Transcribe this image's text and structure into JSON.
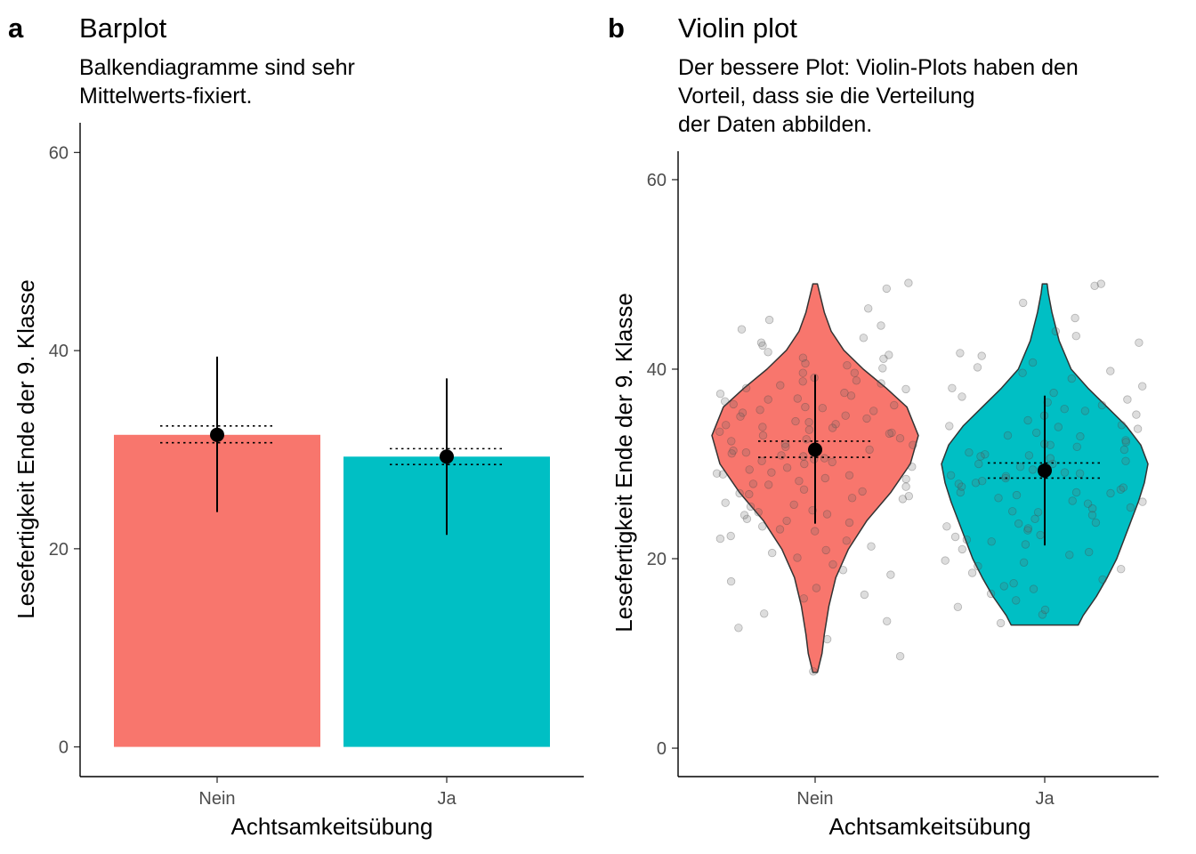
{
  "chart_data": [
    {
      "type": "bar",
      "tag": "a",
      "title": "Barplot",
      "subtitle": [
        "Balkendiagramme sind sehr",
        "Mittelwerts-fixiert."
      ],
      "xlabel": "Achtsamkeitsübung",
      "ylabel": "Lesefertigkeit Ende der 9. Klasse",
      "categories": [
        "Nein",
        "Ja"
      ],
      "colors": [
        "#F8766D",
        "#00BFC4"
      ],
      "values": [
        31.5,
        29.3
      ],
      "sd_low": [
        23.7,
        21.4
      ],
      "sd_high": [
        39.4,
        37.2
      ],
      "ci_low": [
        30.7,
        28.5
      ],
      "ci_high": [
        32.4,
        30.1
      ],
      "yticks": [
        0,
        20,
        40,
        60
      ],
      "ylim": [
        -3,
        63
      ]
    },
    {
      "type": "violin",
      "tag": "b",
      "title": "Violin plot",
      "subtitle": [
        "Der bessere Plot: Violin-Plots haben den",
        "Vorteil, dass sie die Verteilung",
        "der Daten abbilden."
      ],
      "xlabel": "Achtsamkeitsübung",
      "ylabel": "Lesefertigkeit Ende der 9. Klasse",
      "categories": [
        "Nein",
        "Ja"
      ],
      "colors": [
        "#F8766D",
        "#00BFC4"
      ],
      "means": [
        31.5,
        29.3
      ],
      "sd_low": [
        23.7,
        21.4
      ],
      "sd_high": [
        39.4,
        37.2
      ],
      "ci_low": [
        30.7,
        28.5
      ],
      "ci_high": [
        32.4,
        30.1
      ],
      "yticks": [
        0,
        20,
        40,
        60
      ],
      "ylim": [
        -3,
        63
      ],
      "density_profiles": [
        [
          [
            8,
            0.02
          ],
          [
            10,
            0.06
          ],
          [
            12,
            0.08
          ],
          [
            15,
            0.12
          ],
          [
            18,
            0.18
          ],
          [
            21,
            0.29
          ],
          [
            24,
            0.45
          ],
          [
            27,
            0.66
          ],
          [
            30,
            0.83
          ],
          [
            33,
            0.9
          ],
          [
            36,
            0.8
          ],
          [
            38,
            0.62
          ],
          [
            40,
            0.42
          ],
          [
            42,
            0.25
          ],
          [
            44,
            0.14
          ],
          [
            46,
            0.08
          ],
          [
            48,
            0.04
          ],
          [
            49,
            0.02
          ]
        ],
        [
          [
            13,
            0.28
          ],
          [
            14,
            0.32
          ],
          [
            16,
            0.43
          ],
          [
            18,
            0.52
          ],
          [
            20,
            0.6
          ],
          [
            22,
            0.66
          ],
          [
            24,
            0.72
          ],
          [
            26,
            0.78
          ],
          [
            28,
            0.83
          ],
          [
            30,
            0.86
          ],
          [
            32,
            0.8
          ],
          [
            34,
            0.68
          ],
          [
            36,
            0.52
          ],
          [
            38,
            0.36
          ],
          [
            40,
            0.22
          ],
          [
            43,
            0.12
          ],
          [
            46,
            0.06
          ],
          [
            48,
            0.03
          ],
          [
            49,
            0.02
          ]
        ]
      ],
      "points": [
        [
          8.1,
          11.5,
          12.7,
          14.2,
          15.8,
          16.9,
          17.6,
          18.3,
          19.4,
          20.1,
          20.6,
          21.3,
          21.9,
          22.4,
          22.9,
          23.4,
          23.8,
          24.2,
          24.7,
          25.1,
          25.5,
          25.9,
          26.3,
          26.6,
          26.9,
          27.3,
          27.6,
          27.9,
          28.2,
          28.5,
          28.8,
          29.1,
          29.4,
          29.7,
          30.0,
          30.3,
          30.6,
          30.9,
          31.2,
          31.5,
          31.8,
          32.1,
          32.4,
          32.7,
          33.0,
          33.3,
          33.6,
          33.9,
          34.2,
          34.5,
          34.8,
          35.1,
          35.4,
          35.7,
          36.0,
          36.3,
          36.6,
          36.9,
          37.2,
          37.5,
          37.9,
          38.3,
          38.7,
          39.1,
          39.6,
          40.1,
          40.6,
          41.2,
          41.8,
          42.5,
          43.3,
          44.2,
          45.2,
          46.4,
          48.5,
          49.1,
          9.7,
          13.4,
          16.2,
          18.8,
          20.9,
          22.1,
          23.1,
          24.0,
          24.9,
          25.7,
          26.4,
          27.1,
          27.8,
          28.4,
          29.0,
          29.6,
          30.2,
          30.8,
          31.4,
          32.0,
          32.6,
          33.2,
          33.8,
          34.4,
          35.0,
          35.6,
          36.2,
          36.8,
          37.4,
          38.0,
          38.8,
          39.6,
          40.4,
          41.5,
          42.8,
          44.6,
          26.8,
          28.9,
          31.1,
          33.4,
          35.9,
          38.5,
          41.1,
          24.6,
          30.5,
          34.1
        ],
        [
          13.2,
          14.1,
          14.9,
          15.6,
          16.3,
          17.1,
          17.8,
          18.5,
          19.2,
          19.8,
          20.4,
          21.0,
          21.5,
          22.0,
          22.5,
          23.0,
          23.4,
          23.8,
          24.2,
          24.6,
          25.0,
          25.4,
          25.8,
          26.1,
          26.4,
          26.7,
          27.0,
          27.3,
          27.6,
          27.9,
          28.2,
          28.5,
          28.8,
          29.1,
          29.4,
          29.7,
          30.0,
          30.3,
          30.6,
          30.9,
          31.2,
          31.5,
          31.8,
          32.1,
          32.5,
          32.9,
          33.3,
          33.7,
          34.1,
          34.6,
          35.1,
          35.6,
          36.2,
          36.8,
          37.5,
          38.2,
          39.0,
          39.8,
          40.7,
          41.7,
          42.8,
          44.0,
          45.4,
          47.0,
          48.8,
          49.0,
          14.6,
          16.8,
          18.9,
          20.7,
          22.3,
          23.7,
          24.9,
          26.0,
          27.0,
          28.0,
          29.0,
          30.0,
          31.0,
          32.0,
          33.0,
          34.0,
          35.2,
          36.5,
          38.0,
          39.6,
          41.4,
          43.5,
          21.8,
          25.3,
          28.7,
          32.3,
          35.8,
          19.6,
          26.9,
          30.8,
          17.4,
          23.2,
          27.5,
          33.9,
          37.1,
          40.2
        ]
      ]
    }
  ]
}
